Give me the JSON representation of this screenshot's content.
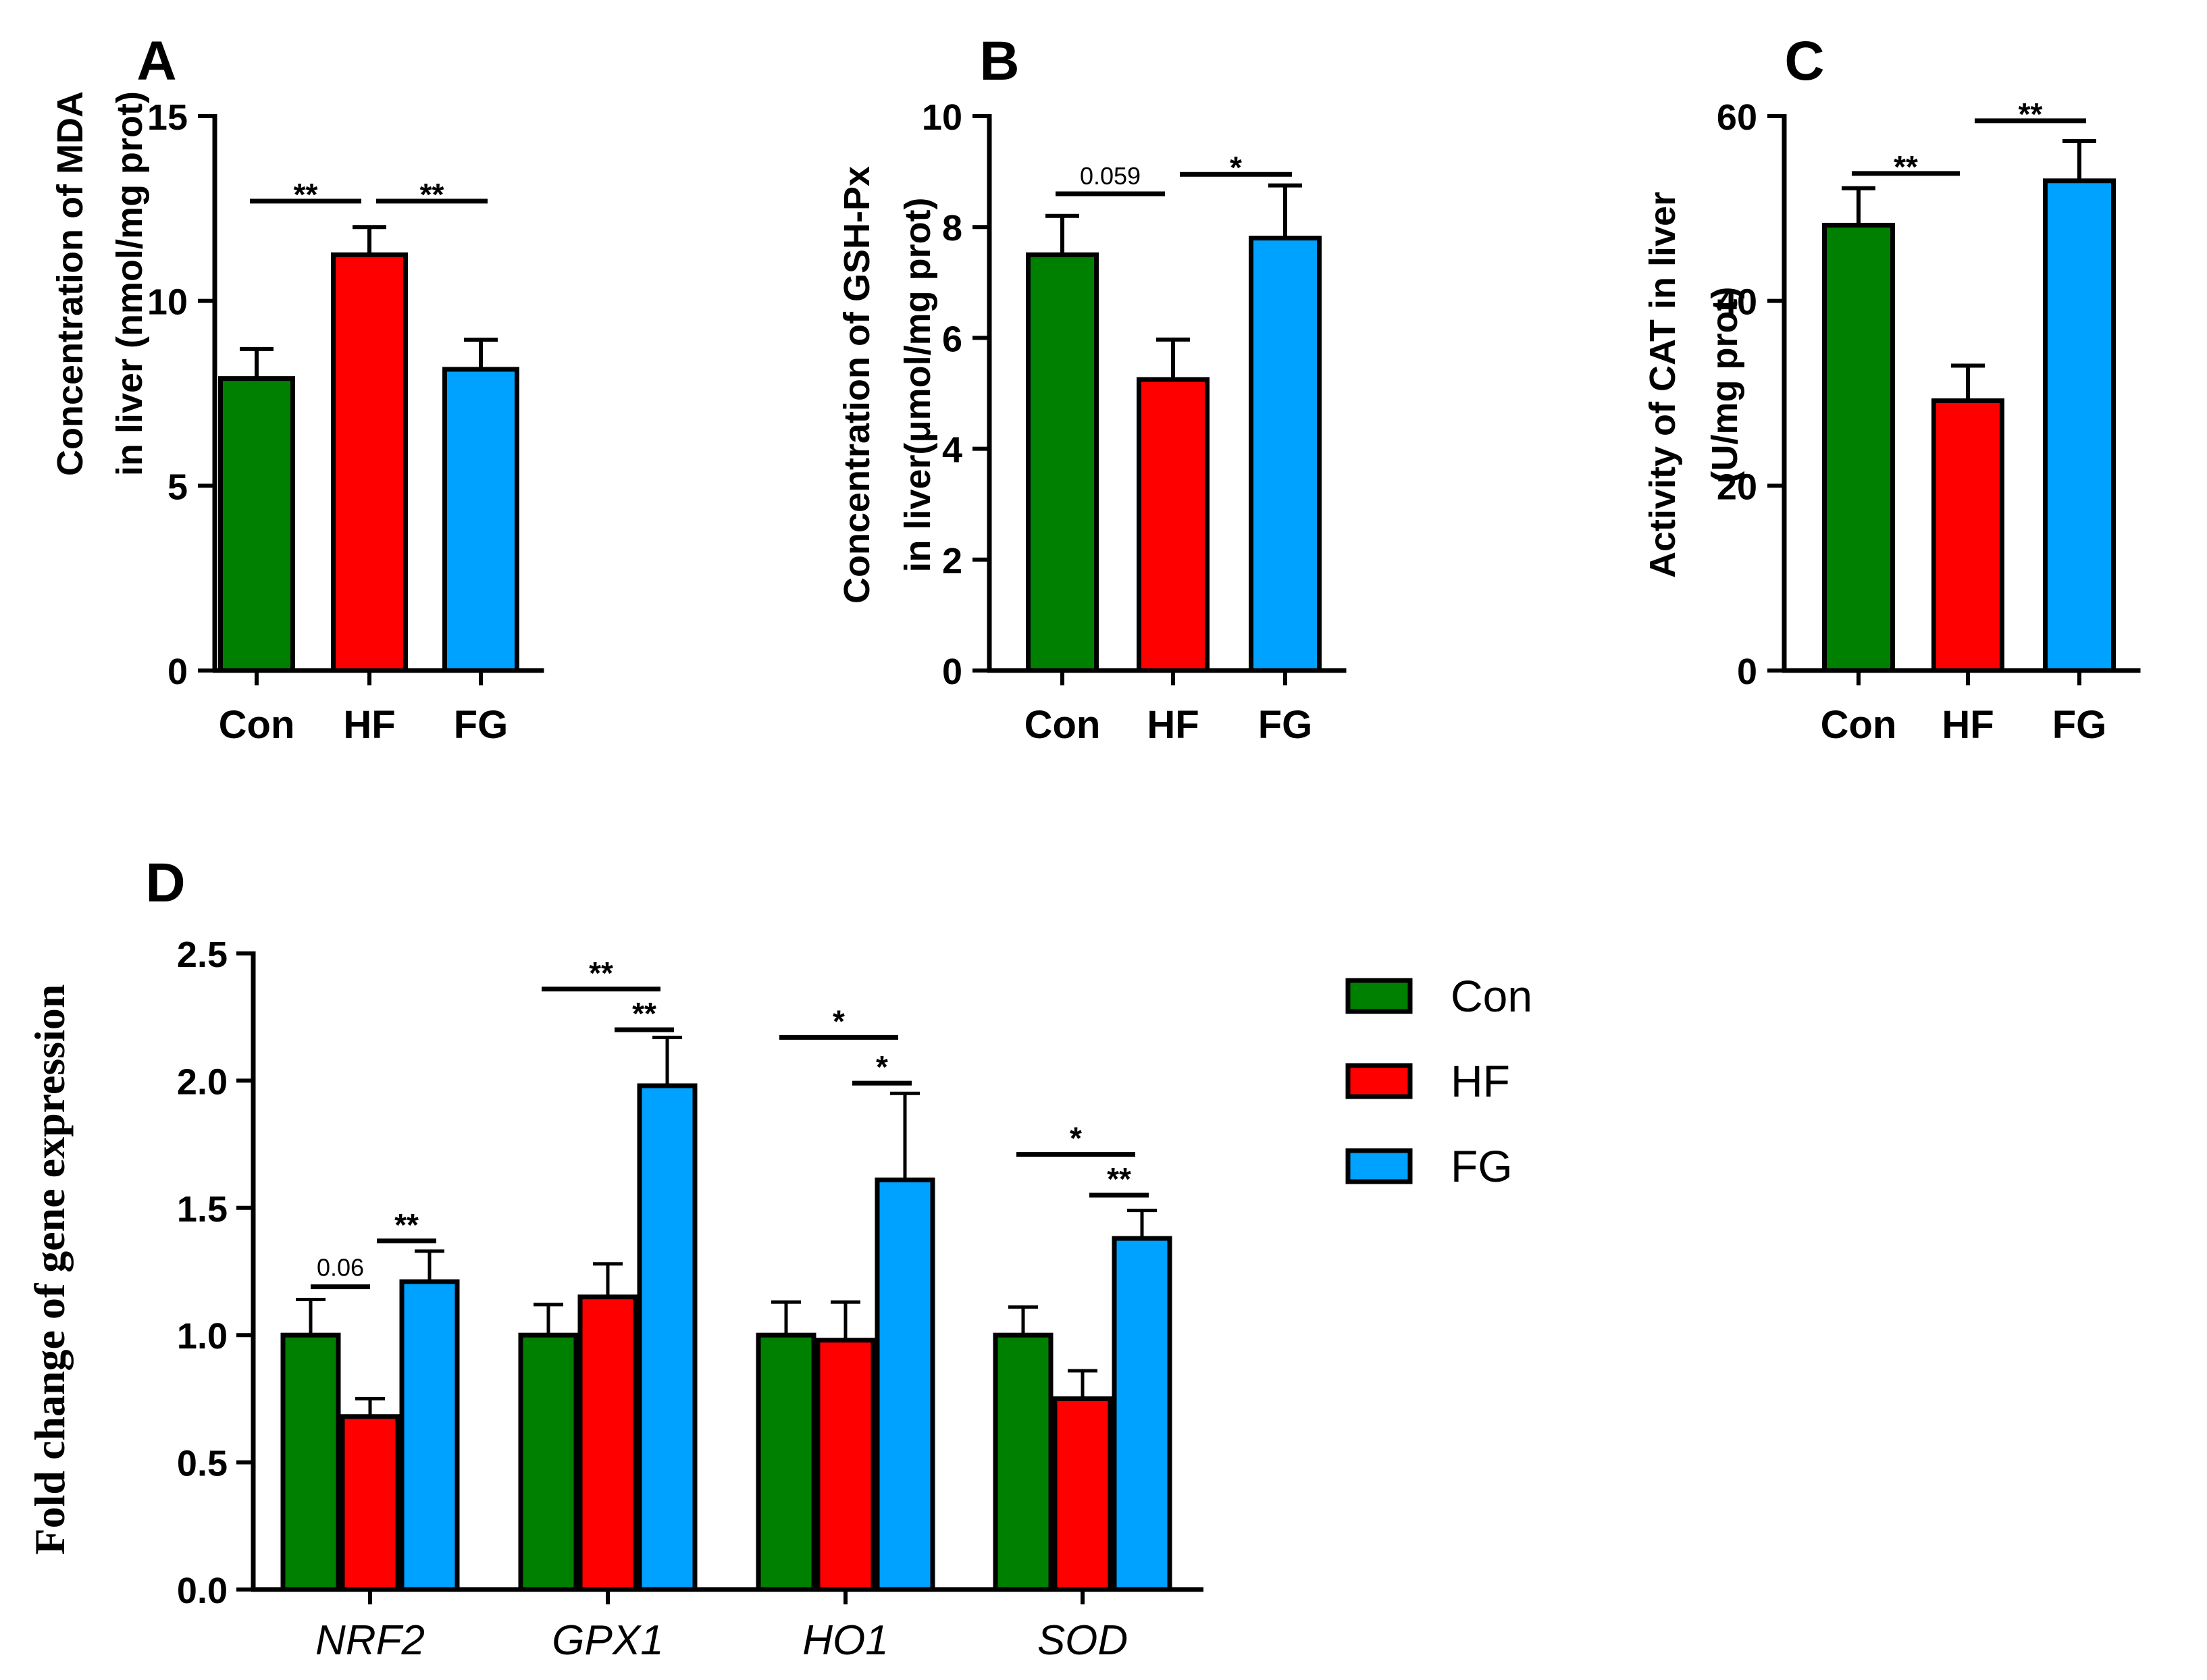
{
  "colors": {
    "Con": "#008000",
    "HF": "#ff0000",
    "FG": "#00a2ff",
    "axis": "#000000"
  },
  "chart_data": [
    {
      "panel": "A",
      "type": "bar",
      "ylabel_lines": [
        "Concentration of MDA",
        "in liver (nmol/mg prot)"
      ],
      "categories": [
        "Con",
        "HF",
        "FG"
      ],
      "values": [
        7.9,
        11.25,
        8.15
      ],
      "errors": [
        0.8,
        0.75,
        0.8
      ],
      "ylim": [
        0,
        15
      ],
      "yticks": [
        0,
        5,
        10,
        15
      ],
      "tick_labels": [
        "0",
        "5",
        "10",
        "15"
      ],
      "annotations": [
        {
          "from": 0,
          "to": 1,
          "y": 12.7,
          "text": "**"
        },
        {
          "from": 1,
          "to": 2,
          "y": 12.7,
          "text": "**"
        }
      ]
    },
    {
      "panel": "B",
      "type": "bar",
      "ylabel_lines": [
        "Concentration of GSH-Px",
        "in liver(μmol/mg prot)"
      ],
      "categories": [
        "Con",
        "HF",
        "FG"
      ],
      "values": [
        7.5,
        5.25,
        7.8
      ],
      "errors": [
        0.7,
        0.72,
        0.95
      ],
      "ylim": [
        0,
        10
      ],
      "yticks": [
        0,
        2,
        4,
        6,
        8,
        10
      ],
      "tick_labels": [
        "0",
        "2",
        "4",
        "6",
        "8",
        "10"
      ],
      "annotations": [
        {
          "from": 0,
          "to": 1,
          "y": 8.6,
          "text": "0.059"
        },
        {
          "from": 1,
          "to": 2,
          "y": 8.95,
          "text": "*"
        }
      ]
    },
    {
      "panel": "C",
      "type": "bar",
      "ylabel_lines": [
        "Activity of CAT in liver",
        "(U/mg prot)"
      ],
      "categories": [
        "Con",
        "HF",
        "FG"
      ],
      "values": [
        48.2,
        29.2,
        53.0
      ],
      "errors": [
        4.0,
        3.8,
        4.3
      ],
      "ylim": [
        0,
        60
      ],
      "yticks": [
        0,
        20,
        40,
        60
      ],
      "tick_labels": [
        "0",
        "20",
        "40",
        "60"
      ],
      "annotations": [
        {
          "from": 0,
          "to": 1,
          "y": 53.8,
          "text": "**"
        },
        {
          "from": 1,
          "to": 2,
          "y": 59.5,
          "text": "**"
        }
      ]
    },
    {
      "panel": "D",
      "type": "bar",
      "ylabel": "Fold change of gene expression",
      "categories": [
        "NRF2",
        "GPX1",
        "HO1",
        "SOD"
      ],
      "series": [
        {
          "name": "Con",
          "values": [
            1.0,
            1.0,
            1.0,
            1.0
          ],
          "errors": [
            0.14,
            0.12,
            0.13,
            0.11
          ]
        },
        {
          "name": "HF",
          "values": [
            0.68,
            1.15,
            0.98,
            0.75
          ],
          "errors": [
            0.07,
            0.13,
            0.15,
            0.11
          ]
        },
        {
          "name": "FG",
          "values": [
            1.21,
            1.98,
            1.61,
            1.38
          ],
          "errors": [
            0.12,
            0.19,
            0.34,
            0.11
          ]
        }
      ],
      "ylim": [
        0,
        2.5
      ],
      "yticks": [
        0,
        0.5,
        1.0,
        1.5,
        2.0,
        2.5
      ],
      "tick_labels": [
        "0.0",
        "0.5",
        "1.0",
        "1.5",
        "2.0",
        "2.5"
      ],
      "annotations": [
        {
          "group": 0,
          "from": 0,
          "to": 1,
          "y": 1.19,
          "text": "0.06"
        },
        {
          "group": 0,
          "from": 1,
          "to": 2,
          "y": 1.37,
          "text": "**"
        },
        {
          "group": 1,
          "from": 0,
          "to": 2,
          "y": 2.36,
          "text": "**"
        },
        {
          "group": 1,
          "from": 1,
          "to": 2,
          "y": 2.2,
          "text": "**"
        },
        {
          "group": 2,
          "from": 0,
          "to": 2,
          "y": 2.17,
          "text": "*"
        },
        {
          "group": 2,
          "from": 1,
          "to": 2,
          "y": 1.99,
          "text": "*"
        },
        {
          "group": 3,
          "from": 0,
          "to": 2,
          "y": 1.71,
          "text": "*"
        },
        {
          "group": 3,
          "from": 1,
          "to": 2,
          "y": 1.55,
          "text": "**"
        }
      ],
      "legend": [
        "Con",
        "HF",
        "FG"
      ],
      "legend_position": "right"
    }
  ]
}
